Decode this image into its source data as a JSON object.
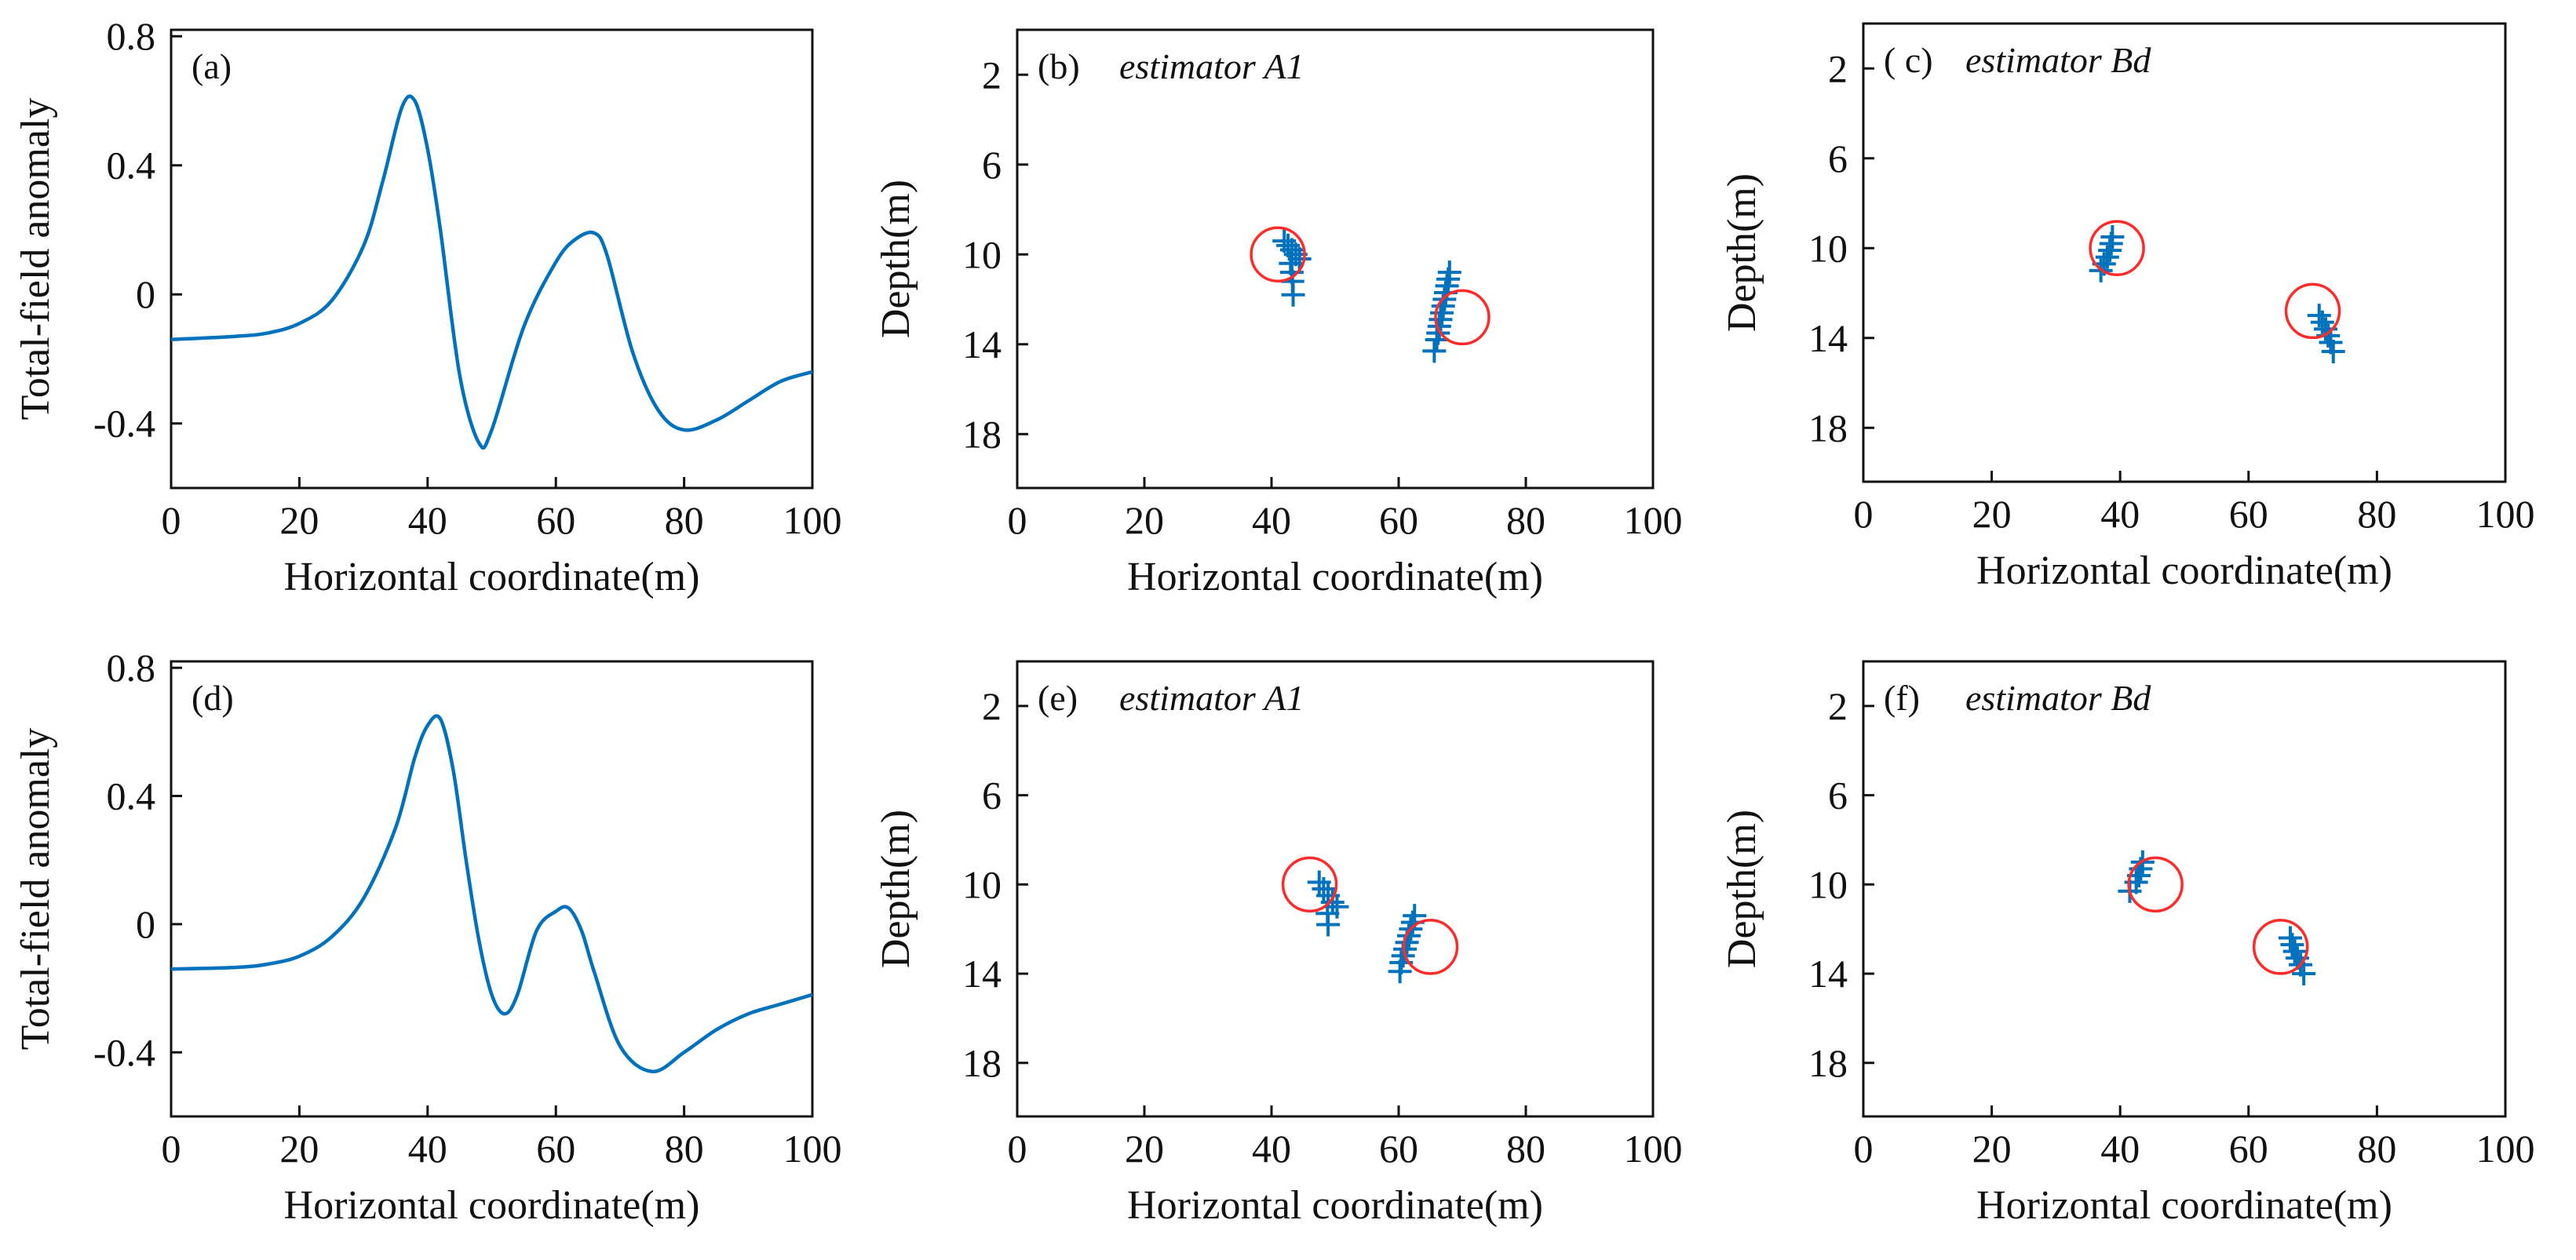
{
  "figure": {
    "colors": {
      "curve": "#0072BD",
      "crosses": "#0072BD",
      "circles": "#FF2A2A"
    }
  },
  "chart_data": [
    {
      "id": "a",
      "type": "line",
      "panel_label": "(a)",
      "xlabel": "Horizontal coordinate(m)",
      "ylabel": "Total-field anomaly",
      "xlim": [
        0,
        100
      ],
      "ylim": [
        -0.6,
        0.82
      ],
      "xticks": [
        0,
        20,
        40,
        60,
        80,
        100
      ],
      "yticks": [
        -0.4,
        0,
        0.4,
        0.8
      ],
      "xtick_labels": [
        "0",
        "20",
        "40",
        "60",
        "80",
        "100"
      ],
      "ytick_labels": [
        "-0.4",
        "0",
        "0.4",
        "0.8"
      ],
      "series": [
        {
          "name": "anomaly",
          "x": [
            0,
            10,
            15,
            20,
            25,
            30,
            33,
            36,
            38,
            40,
            42,
            45,
            48,
            50,
            55,
            60,
            63,
            66,
            68,
            72,
            76,
            80,
            85,
            90,
            95,
            100
          ],
          "y": [
            -0.14,
            -0.13,
            -0.12,
            -0.09,
            -0.02,
            0.15,
            0.35,
            0.58,
            0.6,
            0.45,
            0.2,
            -0.25,
            -0.46,
            -0.42,
            -0.1,
            0.1,
            0.17,
            0.19,
            0.12,
            -0.18,
            -0.36,
            -0.42,
            -0.39,
            -0.33,
            -0.27,
            -0.24
          ]
        }
      ]
    },
    {
      "id": "b",
      "type": "scatter",
      "panel_label": "(b)",
      "title": "estimator A1",
      "xlabel": "Horizontal coordinate(m)",
      "ylabel": "Depth(m)",
      "xlim": [
        0,
        100
      ],
      "ylim": [
        0,
        20.4
      ],
      "y_inverted": true,
      "xticks": [
        0,
        20,
        40,
        60,
        80,
        100
      ],
      "yticks": [
        2,
        6,
        10,
        14,
        18
      ],
      "xtick_labels": [
        "0",
        "20",
        "40",
        "60",
        "80",
        "100"
      ],
      "ytick_labels": [
        "2",
        "6",
        "10",
        "14",
        "18"
      ],
      "true_sources": [
        {
          "x": 41,
          "depth": 10
        },
        {
          "x": 70,
          "depth": 12.8
        }
      ],
      "estimates": [
        {
          "x": 42,
          "depth": 9.4
        },
        {
          "x": 42.6,
          "depth": 9.6
        },
        {
          "x": 43.2,
          "depth": 9.8
        },
        {
          "x": 43.8,
          "depth": 10.0
        },
        {
          "x": 44.4,
          "depth": 10.2
        },
        {
          "x": 43.0,
          "depth": 10.4
        },
        {
          "x": 43.2,
          "depth": 10.8
        },
        {
          "x": 43.3,
          "depth": 11.2
        },
        {
          "x": 43.4,
          "depth": 11.8
        },
        {
          "x": 68,
          "depth": 10.8
        },
        {
          "x": 67.8,
          "depth": 11.1
        },
        {
          "x": 67.6,
          "depth": 11.4
        },
        {
          "x": 67.4,
          "depth": 11.7
        },
        {
          "x": 67.2,
          "depth": 12.0
        },
        {
          "x": 67,
          "depth": 12.3
        },
        {
          "x": 66.8,
          "depth": 12.6
        },
        {
          "x": 66.6,
          "depth": 12.9
        },
        {
          "x": 66.4,
          "depth": 13.2
        },
        {
          "x": 66.2,
          "depth": 13.5
        },
        {
          "x": 66,
          "depth": 13.8
        },
        {
          "x": 65.6,
          "depth": 14.3
        }
      ]
    },
    {
      "id": "c",
      "type": "scatter",
      "panel_label": "( c)",
      "title": "estimator Bd",
      "xlabel": "Horizontal coordinate(m)",
      "ylabel": "Depth(m)",
      "xlim": [
        0,
        100
      ],
      "ylim": [
        0,
        20.4
      ],
      "y_inverted": true,
      "xticks": [
        0,
        20,
        40,
        60,
        80,
        100
      ],
      "yticks": [
        2,
        6,
        10,
        14,
        18
      ],
      "xtick_labels": [
        "0",
        "20",
        "40",
        "60",
        "80",
        "100"
      ],
      "ytick_labels": [
        "2",
        "6",
        "10",
        "14",
        "18"
      ],
      "true_sources": [
        {
          "x": 39.5,
          "depth": 10
        },
        {
          "x": 70,
          "depth": 12.8
        }
      ],
      "estimates": [
        {
          "x": 38.8,
          "depth": 9.5
        },
        {
          "x": 38.6,
          "depth": 9.8
        },
        {
          "x": 38.4,
          "depth": 10.1
        },
        {
          "x": 38.0,
          "depth": 10.4
        },
        {
          "x": 37.5,
          "depth": 10.7
        },
        {
          "x": 37,
          "depth": 11.0
        },
        {
          "x": 71,
          "depth": 13.0
        },
        {
          "x": 71.5,
          "depth": 13.3
        },
        {
          "x": 72,
          "depth": 13.6
        },
        {
          "x": 72.4,
          "depth": 13.9
        },
        {
          "x": 72.8,
          "depth": 14.2
        },
        {
          "x": 73.2,
          "depth": 14.6
        }
      ]
    },
    {
      "id": "d",
      "type": "line",
      "panel_label": "(d)",
      "xlabel": "Horizontal coordinate(m)",
      "ylabel": "Total-field anomaly",
      "xlim": [
        0,
        100
      ],
      "ylim": [
        -0.6,
        0.82
      ],
      "xticks": [
        0,
        20,
        40,
        60,
        80,
        100
      ],
      "yticks": [
        -0.4,
        0,
        0.4,
        0.8
      ],
      "xtick_labels": [
        "0",
        "20",
        "40",
        "60",
        "80",
        "100"
      ],
      "ytick_labels": [
        "-0.4",
        "0",
        "0.4",
        "0.8"
      ],
      "series": [
        {
          "name": "anomaly",
          "x": [
            0,
            10,
            15,
            20,
            25,
            30,
            35,
            38,
            40,
            42,
            44,
            46,
            48,
            50,
            52,
            54,
            57,
            60,
            62,
            64,
            66,
            70,
            75,
            80,
            85,
            90,
            95,
            100
          ],
          "y": [
            -0.14,
            -0.135,
            -0.125,
            -0.1,
            -0.04,
            0.08,
            0.3,
            0.52,
            0.62,
            0.64,
            0.48,
            0.2,
            -0.05,
            -0.22,
            -0.28,
            -0.22,
            -0.02,
            0.04,
            0.05,
            -0.02,
            -0.15,
            -0.38,
            -0.46,
            -0.4,
            -0.33,
            -0.28,
            -0.25,
            -0.22
          ]
        }
      ]
    },
    {
      "id": "e",
      "type": "scatter",
      "panel_label": "(e)",
      "title": "estimator A1",
      "xlabel": "Horizontal coordinate(m)",
      "ylabel": "Depth(m)",
      "xlim": [
        0,
        100
      ],
      "ylim": [
        0,
        20.4
      ],
      "y_inverted": true,
      "xticks": [
        0,
        20,
        40,
        60,
        80,
        100
      ],
      "yticks": [
        2,
        6,
        10,
        14,
        18
      ],
      "xtick_labels": [
        "0",
        "20",
        "40",
        "60",
        "80",
        "100"
      ],
      "ytick_labels": [
        "2",
        "6",
        "10",
        "14",
        "18"
      ],
      "true_sources": [
        {
          "x": 46,
          "depth": 10
        },
        {
          "x": 65,
          "depth": 12.8
        }
      ],
      "estimates": [
        {
          "x": 47.5,
          "depth": 9.9
        },
        {
          "x": 48.2,
          "depth": 10.2
        },
        {
          "x": 48.9,
          "depth": 10.5
        },
        {
          "x": 49.6,
          "depth": 10.8
        },
        {
          "x": 50.3,
          "depth": 11.0
        },
        {
          "x": 48.8,
          "depth": 11.3
        },
        {
          "x": 48.9,
          "depth": 11.8
        },
        {
          "x": 62.5,
          "depth": 11.4
        },
        {
          "x": 62.2,
          "depth": 11.7
        },
        {
          "x": 61.9,
          "depth": 12.0
        },
        {
          "x": 61.6,
          "depth": 12.3
        },
        {
          "x": 61.3,
          "depth": 12.6
        },
        {
          "x": 61.0,
          "depth": 12.9
        },
        {
          "x": 60.7,
          "depth": 13.2
        },
        {
          "x": 60.4,
          "depth": 13.5
        },
        {
          "x": 60.2,
          "depth": 13.9
        }
      ]
    },
    {
      "id": "f",
      "type": "scatter",
      "panel_label": "(f)",
      "title": "estimator Bd",
      "xlabel": "Horizontal coordinate(m)",
      "ylabel": "Depth(m)",
      "xlim": [
        0,
        100
      ],
      "ylim": [
        0,
        20.4
      ],
      "y_inverted": true,
      "xticks": [
        0,
        20,
        40,
        60,
        80,
        100
      ],
      "yticks": [
        2,
        6,
        10,
        14,
        18
      ],
      "xtick_labels": [
        "0",
        "20",
        "40",
        "60",
        "80",
        "100"
      ],
      "ytick_labels": [
        "2",
        "6",
        "10",
        "14",
        "18"
      ],
      "true_sources": [
        {
          "x": 45.5,
          "depth": 10
        },
        {
          "x": 65,
          "depth": 12.8
        }
      ],
      "estimates": [
        {
          "x": 43.5,
          "depth": 9.0
        },
        {
          "x": 43.2,
          "depth": 9.3
        },
        {
          "x": 42.9,
          "depth": 9.6
        },
        {
          "x": 42.5,
          "depth": 9.9
        },
        {
          "x": 41.5,
          "depth": 10.3
        },
        {
          "x": 66.5,
          "depth": 12.4
        },
        {
          "x": 66.8,
          "depth": 12.7
        },
        {
          "x": 67.2,
          "depth": 13.0
        },
        {
          "x": 67.6,
          "depth": 13.3
        },
        {
          "x": 68.1,
          "depth": 13.6
        },
        {
          "x": 68.6,
          "depth": 14.0
        }
      ]
    }
  ]
}
